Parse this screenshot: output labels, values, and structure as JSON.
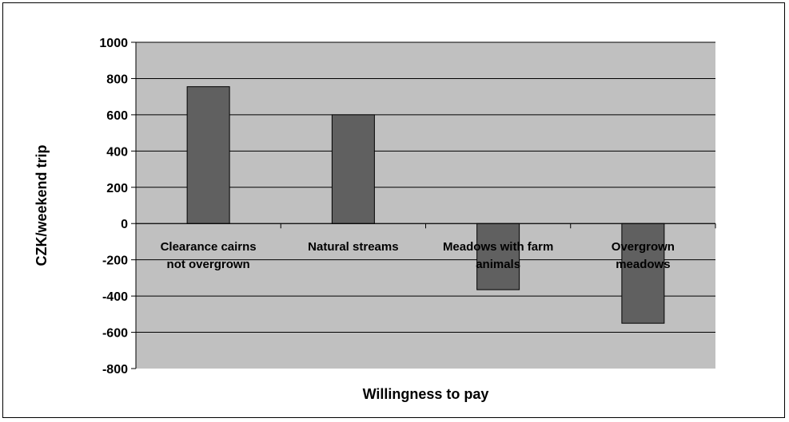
{
  "chart_data": {
    "type": "bar",
    "categories": [
      [
        "Clearance cairns",
        "not overgrown"
      ],
      [
        "Natural streams"
      ],
      [
        "Meadows with farm",
        "animals"
      ],
      [
        "Overgrown",
        "meadows"
      ]
    ],
    "values": [
      755,
      600,
      -365,
      -550
    ],
    "xlabel": "Willingness to pay",
    "ylabel": "CZK/weekend trip",
    "ylim": [
      -800,
      1000
    ],
    "yticks": [
      -800,
      -600,
      -400,
      -200,
      0,
      200,
      400,
      600,
      800,
      1000
    ],
    "grid": true,
    "colors": {
      "plot_background": "#c0c0c0",
      "bar_fill": "#606060",
      "gridline": "#000000"
    }
  }
}
